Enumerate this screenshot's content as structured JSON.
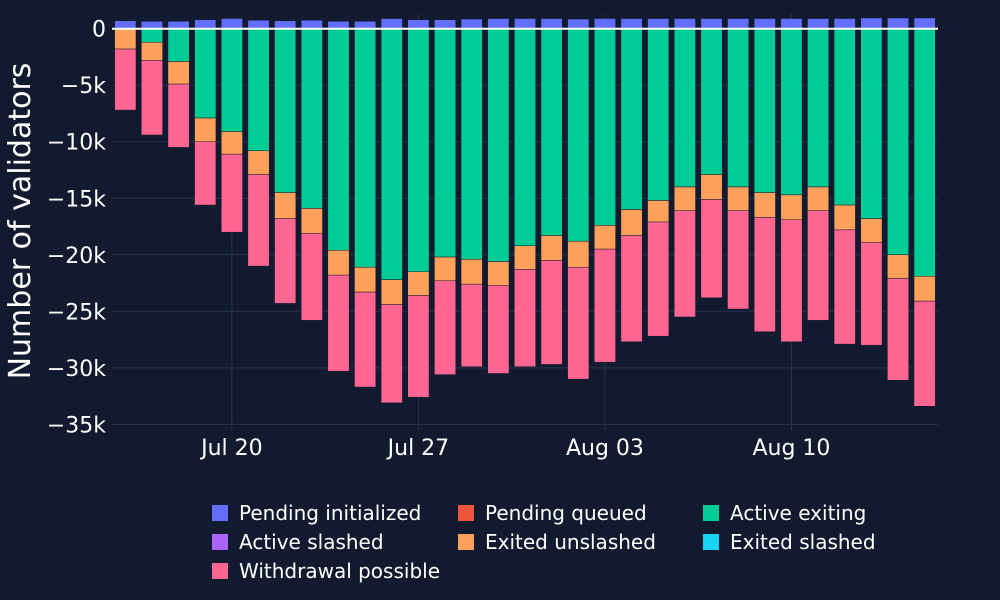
{
  "chart_data": {
    "type": "bar",
    "barmode": "relative",
    "ylabel": "Number of validators",
    "ylim": [
      -35500,
      1300
    ],
    "yticks": [
      0,
      -5000,
      -10000,
      -15000,
      -20000,
      -25000,
      -30000,
      -35000
    ],
    "ytick_labels": [
      "0",
      "−5k",
      "−10k",
      "−15k",
      "−20k",
      "−25k",
      "−30k",
      "−35k"
    ],
    "x_start": "2024-07-16",
    "xticks": [
      {
        "date": "2024-07-20",
        "label": "Jul 20"
      },
      {
        "date": "2024-07-27",
        "label": "Jul 27"
      },
      {
        "date": "2024-08-03",
        "label": "Aug 03"
      },
      {
        "date": "2024-08-10",
        "label": "Aug 10"
      }
    ],
    "grid": true,
    "legend_position": "bottom",
    "series": [
      {
        "name": "Pending initialized",
        "color": "#636efa",
        "values": [
          700,
          650,
          650,
          800,
          900,
          750,
          700,
          750,
          650,
          650,
          900,
          800,
          800,
          850,
          900,
          900,
          900,
          850,
          900,
          900,
          900,
          900,
          900,
          900,
          900,
          900,
          900,
          900,
          950,
          950,
          950
        ]
      },
      {
        "name": "Pending queued",
        "color": "#ef553b",
        "values": [
          0,
          0,
          0,
          0,
          0,
          0,
          0,
          0,
          0,
          0,
          0,
          0,
          0,
          0,
          0,
          0,
          0,
          0,
          0,
          0,
          0,
          0,
          0,
          0,
          0,
          0,
          0,
          0,
          0,
          0,
          0
        ]
      },
      {
        "name": "Active exiting",
        "color": "#00cc96",
        "values": [
          0,
          -1200,
          -2900,
          -7900,
          -9100,
          -10800,
          -14500,
          -15900,
          -19600,
          -21100,
          -22200,
          -21500,
          -20200,
          -20400,
          -20600,
          -19200,
          -18300,
          -18800,
          -17400,
          -16000,
          -15200,
          -14000,
          -12900,
          -14000,
          -14500,
          -14700,
          -14000,
          -15600,
          -16800,
          -20000,
          -21900
        ]
      },
      {
        "name": "Active slashed",
        "color": "#ab63fa",
        "values": [
          0,
          0,
          0,
          0,
          0,
          0,
          0,
          0,
          0,
          0,
          0,
          0,
          0,
          0,
          0,
          0,
          0,
          0,
          0,
          0,
          0,
          0,
          0,
          0,
          0,
          0,
          0,
          0,
          0,
          0,
          0
        ]
      },
      {
        "name": "Exited unslashed",
        "color": "#ffa15a",
        "values": [
          -1800,
          -1600,
          -2000,
          -2100,
          -2000,
          -2100,
          -2300,
          -2200,
          -2200,
          -2200,
          -2200,
          -2100,
          -2100,
          -2200,
          -2100,
          -2100,
          -2200,
          -2300,
          -2100,
          -2300,
          -1900,
          -2100,
          -2200,
          -2100,
          -2200,
          -2200,
          -2100,
          -2200,
          -2100,
          -2100,
          -2200
        ]
      },
      {
        "name": "Exited slashed",
        "color": "#19d3f3",
        "values": [
          0,
          0,
          0,
          0,
          0,
          0,
          0,
          0,
          0,
          0,
          0,
          0,
          0,
          0,
          0,
          0,
          0,
          0,
          0,
          0,
          0,
          0,
          0,
          0,
          0,
          0,
          0,
          0,
          0,
          0,
          0
        ]
      },
      {
        "name": "Withdrawal possible",
        "color": "#ff6692",
        "values": [
          -5400,
          -6600,
          -5600,
          -5600,
          -6900,
          -8100,
          -7500,
          -7700,
          -8500,
          -8400,
          -8700,
          -9000,
          -8300,
          -7300,
          -7800,
          -8600,
          -9200,
          -9900,
          -10000,
          -9400,
          -10100,
          -9400,
          -8700,
          -8700,
          -10100,
          -10800,
          -9700,
          -10100,
          -9100,
          -9000,
          -9300
        ]
      }
    ],
    "legend_order": [
      "Pending initialized",
      "Pending queued",
      "Active exiting",
      "Active slashed",
      "Exited unslashed",
      "Exited slashed",
      "Withdrawal possible"
    ]
  }
}
